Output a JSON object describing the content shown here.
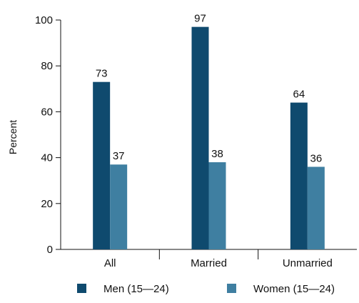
{
  "chart_data": {
    "type": "bar",
    "title": "",
    "xlabel": "",
    "ylabel": "Percent",
    "ylim": [
      0,
      100
    ],
    "yticks": [
      "0",
      "20",
      "40",
      "60",
      "80",
      "100"
    ],
    "grid": false,
    "legend_position": "bottom",
    "categories": [
      "All",
      "Married",
      "Unmarried"
    ],
    "series": [
      {
        "name": "Men (15—24)",
        "color": "#0f4a6e",
        "values": [
          73,
          97,
          64
        ],
        "labels": [
          "73",
          "97",
          "64"
        ]
      },
      {
        "name": "Women (15—24)",
        "color": "#3f7fa1",
        "values": [
          37,
          38,
          36
        ],
        "labels": [
          "37",
          "38",
          "36"
        ]
      }
    ]
  }
}
